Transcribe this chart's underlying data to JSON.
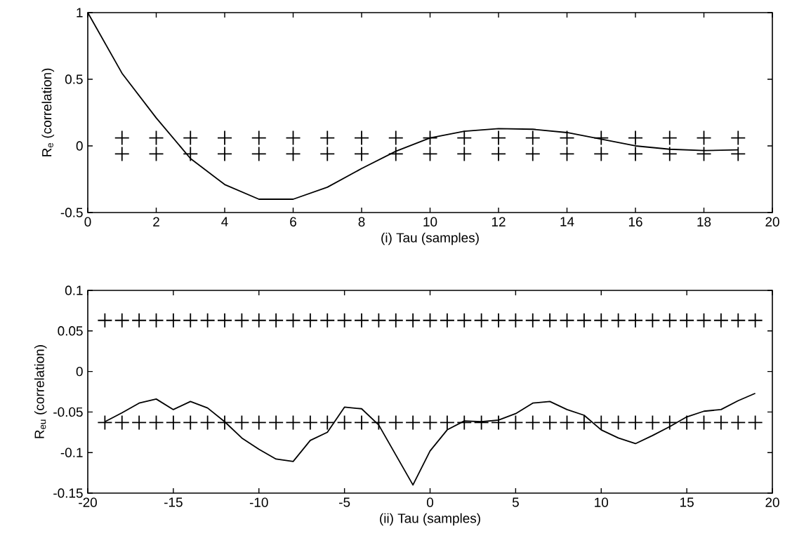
{
  "chart_data": [
    {
      "type": "line",
      "xlabel": "(i) Tau (samples)",
      "ylabel": "R$_{e}$ (correlation)",
      "xlim": [
        0,
        20
      ],
      "ylim": [
        -0.5,
        1
      ],
      "xticks": [
        0,
        2,
        4,
        6,
        8,
        10,
        12,
        14,
        16,
        18,
        20
      ],
      "yticks": [
        -0.5,
        0,
        0.5,
        1
      ],
      "grid": false,
      "series": [
        {
          "color": "#000000",
          "marker": "none",
          "line_style": "solid",
          "x": [
            0,
            1,
            2,
            3,
            4,
            5,
            6,
            7,
            8,
            9,
            10,
            11,
            12,
            13,
            14,
            15,
            16,
            17,
            18,
            19
          ],
          "values": [
            1,
            0.545,
            0.21,
            -0.095,
            -0.29,
            -0.4,
            -0.4,
            -0.31,
            -0.17,
            -0.04,
            0.06,
            0.11,
            0.13,
            0.125,
            0.1,
            0.05,
            0,
            -0.025,
            -0.035,
            -0.03
          ]
        },
        {
          "type": "scatter",
          "color": "#000000",
          "marker": "cross",
          "x": [
            1,
            2,
            3,
            4,
            5,
            6,
            7,
            8,
            9,
            10,
            11,
            12,
            13,
            14,
            15,
            16,
            17,
            18,
            19
          ],
          "values": [
            0.06,
            0.06,
            0.06,
            0.06,
            0.06,
            0.06,
            0.06,
            0.06,
            0.06,
            0.06,
            0.06,
            0.06,
            0.06,
            0.06,
            0.06,
            0.06,
            0.06,
            0.06,
            0.06
          ]
        },
        {
          "type": "scatter",
          "color": "#000000",
          "marker": "cross",
          "x": [
            1,
            2,
            3,
            4,
            5,
            6,
            7,
            8,
            9,
            10,
            11,
            12,
            13,
            14,
            15,
            16,
            17,
            18,
            19
          ],
          "values": [
            -0.06,
            -0.06,
            -0.06,
            -0.06,
            -0.06,
            -0.06,
            -0.06,
            -0.06,
            -0.06,
            -0.06,
            -0.06,
            -0.06,
            -0.06,
            -0.06,
            -0.06,
            -0.06,
            -0.06,
            -0.06,
            -0.06
          ]
        }
      ]
    },
    {
      "type": "line",
      "xlabel": "(ii) Tau (samples)",
      "ylabel": "R$_{eu}$ (correlation)",
      "xlim": [
        -20,
        20
      ],
      "ylim": [
        -0.15,
        0.1
      ],
      "xticks": [
        -20,
        -15,
        -10,
        -5,
        0,
        5,
        10,
        15,
        20
      ],
      "yticks": [
        -0.15,
        -0.1,
        -0.05,
        0,
        0.05,
        0.1
      ],
      "grid": false,
      "series": [
        {
          "color": "#000000",
          "marker": "none",
          "line_style": "solid",
          "x": [
            -19,
            -18,
            -17,
            -16,
            -15,
            -14,
            -13,
            -12,
            -11,
            -10,
            -9,
            -8,
            -7,
            -6,
            -5,
            -4,
            -3,
            -2,
            -1,
            0,
            1,
            2,
            3,
            4,
            5,
            6,
            7,
            8,
            9,
            10,
            11,
            12,
            13,
            14,
            15,
            16,
            17,
            18,
            19
          ],
          "values": [
            -0.062,
            -0.051,
            -0.039,
            -0.034,
            -0.047,
            -0.037,
            -0.045,
            -0.062,
            -0.082,
            -0.096,
            -0.108,
            -0.111,
            -0.085,
            -0.075,
            -0.044,
            -0.046,
            -0.066,
            -0.103,
            -0.14,
            -0.098,
            -0.072,
            -0.061,
            -0.062,
            -0.06,
            -0.052,
            -0.039,
            -0.037,
            -0.047,
            -0.054,
            -0.072,
            -0.082,
            -0.089,
            -0.079,
            -0.068,
            -0.056,
            -0.049,
            -0.047,
            -0.036,
            -0.027
          ]
        },
        {
          "type": "scatter",
          "color": "#000000",
          "marker": "cross",
          "x": [
            -19,
            -18,
            -17,
            -16,
            -15,
            -14,
            -13,
            -12,
            -11,
            -10,
            -9,
            -8,
            -7,
            -6,
            -5,
            -4,
            -3,
            -2,
            -1,
            0,
            1,
            2,
            3,
            4,
            5,
            6,
            7,
            8,
            9,
            10,
            11,
            12,
            13,
            14,
            15,
            16,
            17,
            18,
            19
          ],
          "values": [
            0.063,
            0.063,
            0.063,
            0.063,
            0.063,
            0.063,
            0.063,
            0.063,
            0.063,
            0.063,
            0.063,
            0.063,
            0.063,
            0.063,
            0.063,
            0.063,
            0.063,
            0.063,
            0.063,
            0.063,
            0.063,
            0.063,
            0.063,
            0.063,
            0.063,
            0.063,
            0.063,
            0.063,
            0.063,
            0.063,
            0.063,
            0.063,
            0.063,
            0.063,
            0.063,
            0.063,
            0.063,
            0.063,
            0.063
          ]
        },
        {
          "type": "scatter",
          "color": "#000000",
          "marker": "cross",
          "x": [
            -19,
            -18,
            -17,
            -16,
            -15,
            -14,
            -13,
            -12,
            -11,
            -10,
            -9,
            -8,
            -7,
            -6,
            -5,
            -4,
            -3,
            -2,
            -1,
            0,
            1,
            2,
            3,
            4,
            5,
            6,
            7,
            8,
            9,
            10,
            11,
            12,
            13,
            14,
            15,
            16,
            17,
            18,
            19
          ],
          "values": [
            -0.063,
            -0.063,
            -0.063,
            -0.063,
            -0.063,
            -0.063,
            -0.063,
            -0.063,
            -0.063,
            -0.063,
            -0.063,
            -0.063,
            -0.063,
            -0.063,
            -0.063,
            -0.063,
            -0.063,
            -0.063,
            -0.063,
            -0.063,
            -0.063,
            -0.063,
            -0.063,
            -0.063,
            -0.063,
            -0.063,
            -0.063,
            -0.063,
            -0.063,
            -0.063,
            -0.063,
            -0.063,
            -0.063,
            -0.063,
            -0.063,
            -0.063,
            -0.063,
            -0.063,
            -0.063
          ]
        }
      ]
    }
  ]
}
